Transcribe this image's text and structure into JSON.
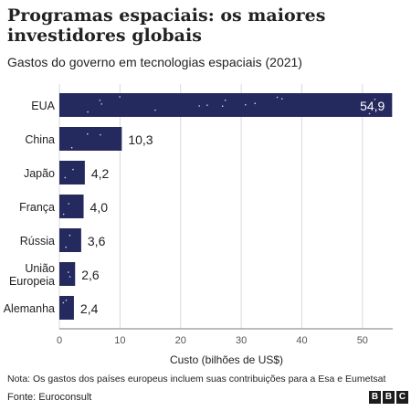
{
  "title": "Programas espaciais: os maiores investidores globais",
  "subtitle": "Gastos do governo em tecnologias espaciais (2021)",
  "note": "Nota: Os gastos dos países europeus incluem suas contribuições para a Esa e Eumetsat",
  "source": "Fonte: Euroconsult",
  "logo": [
    "B",
    "B",
    "C"
  ],
  "colors": {
    "bar": "#252a5e",
    "star": "#d8d8f0",
    "grid": "#d9d9d9",
    "axis": "#7a7a7a"
  },
  "chart_data": {
    "type": "bar",
    "orientation": "horizontal",
    "categories": [
      "EUA",
      "China",
      "Japão",
      "França",
      "Rússia",
      "União Europeia",
      "Alemanha"
    ],
    "value_labels": [
      "54,9",
      "10,3",
      "4,2",
      "4,0",
      "3,6",
      "2,6",
      "2,4"
    ],
    "values": [
      54.9,
      10.3,
      4.2,
      4.0,
      3.6,
      2.6,
      2.4
    ],
    "xlabel": "Custo (bilhões de US$)",
    "xlim": [
      0,
      55
    ],
    "xticks": [
      0,
      10,
      20,
      30,
      40,
      50
    ],
    "grid": true,
    "bar_decoration": "stars"
  }
}
